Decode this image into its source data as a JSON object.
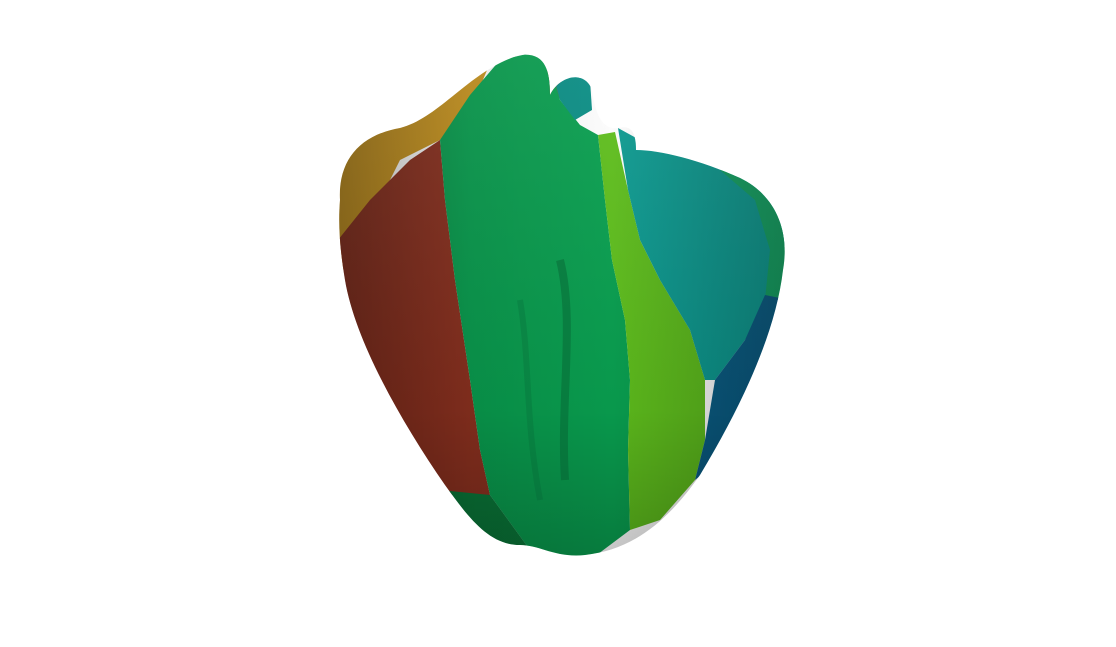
{
  "scene": {
    "background": "#ffffff",
    "object": "heart-mesh",
    "segments": [
      {
        "name": "segment-ochre",
        "color": "#c9951f"
      },
      {
        "name": "segment-red",
        "color": "#8f3220"
      },
      {
        "name": "segment-green",
        "color": "#09a050"
      },
      {
        "name": "segment-lime",
        "color": "#5fbf1d"
      },
      {
        "name": "segment-teal",
        "color": "#0d9c92"
      },
      {
        "name": "segment-blue",
        "color": "#0a5e86"
      },
      {
        "name": "segment-dark-green",
        "color": "#0a7a3a"
      }
    ]
  }
}
